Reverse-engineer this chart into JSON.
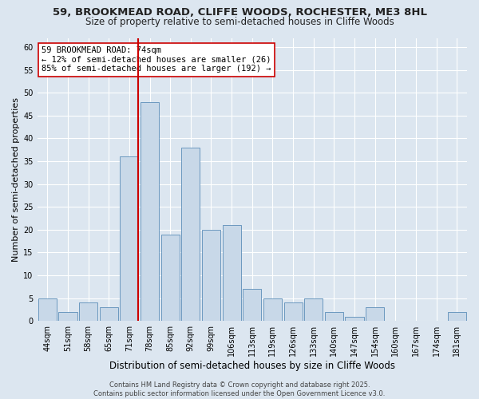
{
  "title1": "59, BROOKMEAD ROAD, CLIFFE WOODS, ROCHESTER, ME3 8HL",
  "title2": "Size of property relative to semi-detached houses in Cliffe Woods",
  "xlabel": "Distribution of semi-detached houses by size in Cliffe Woods",
  "ylabel": "Number of semi-detached properties",
  "categories": [
    "44sqm",
    "51sqm",
    "58sqm",
    "65sqm",
    "71sqm",
    "78sqm",
    "85sqm",
    "92sqm",
    "99sqm",
    "106sqm",
    "113sqm",
    "119sqm",
    "126sqm",
    "133sqm",
    "140sqm",
    "147sqm",
    "154sqm",
    "160sqm",
    "167sqm",
    "174sqm",
    "181sqm"
  ],
  "values": [
    5,
    2,
    4,
    3,
    36,
    48,
    19,
    38,
    20,
    21,
    7,
    5,
    4,
    5,
    2,
    1,
    3,
    0,
    0,
    0,
    2
  ],
  "bar_color": "#c8d8e8",
  "bar_edge_color": "#5b8db8",
  "highlight_index": 4,
  "highlight_color": "#cc0000",
  "annotation_line1": "59 BROOKMEAD ROAD: 74sqm",
  "annotation_line2": "← 12% of semi-detached houses are smaller (26)",
  "annotation_line3": "85% of semi-detached houses are larger (192) →",
  "annotation_box_facecolor": "#ffffff",
  "annotation_box_edgecolor": "#cc0000",
  "ylim_max": 62,
  "yticks": [
    0,
    5,
    10,
    15,
    20,
    25,
    30,
    35,
    40,
    45,
    50,
    55,
    60
  ],
  "background_color": "#dce6f0",
  "footer_text": "Contains HM Land Registry data © Crown copyright and database right 2025.\nContains public sector information licensed under the Open Government Licence v3.0.",
  "title1_fontsize": 9.5,
  "title2_fontsize": 8.5,
  "xlabel_fontsize": 8.5,
  "ylabel_fontsize": 8,
  "tick_fontsize": 7,
  "annotation_fontsize": 7.5,
  "footer_fontsize": 6
}
